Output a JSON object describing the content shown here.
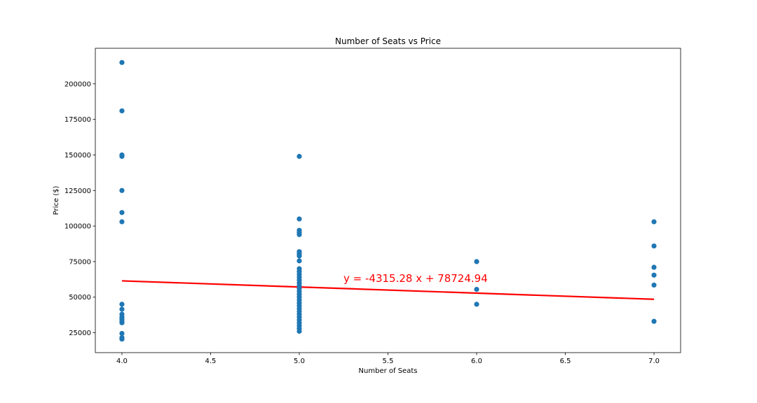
{
  "chart_data": {
    "type": "scatter",
    "title": "Number of Seats vs Price",
    "xlabel": "Number of Seats",
    "ylabel": "Price ($)",
    "xlim": [
      3.85,
      7.15
    ],
    "ylim": [
      11000,
      225000
    ],
    "xticks": [
      4.0,
      4.5,
      5.0,
      5.5,
      6.0,
      6.5,
      7.0
    ],
    "xtick_labels": [
      "4.0",
      "4.5",
      "5.0",
      "5.5",
      "6.0",
      "6.5",
      "7.0"
    ],
    "yticks": [
      25000,
      50000,
      75000,
      100000,
      125000,
      150000,
      175000,
      200000
    ],
    "ytick_labels": [
      "25000",
      "50000",
      "75000",
      "100000",
      "125000",
      "150000",
      "175000",
      "200000"
    ],
    "grid": false,
    "marker_color": "#1f77b4",
    "points": [
      [
        4,
        215000
      ],
      [
        4,
        181000
      ],
      [
        4,
        150000
      ],
      [
        4,
        149000
      ],
      [
        4,
        125000
      ],
      [
        4,
        109500
      ],
      [
        4,
        103000
      ],
      [
        4,
        45000
      ],
      [
        4,
        41500
      ],
      [
        4,
        38000
      ],
      [
        4,
        36000
      ],
      [
        4,
        34500
      ],
      [
        4,
        33000
      ],
      [
        4,
        32000
      ],
      [
        4,
        24500
      ],
      [
        4,
        21500
      ],
      [
        4,
        20500
      ],
      [
        5,
        149000
      ],
      [
        5,
        105000
      ],
      [
        5,
        97000
      ],
      [
        5,
        95500
      ],
      [
        5,
        94000
      ],
      [
        5,
        82000
      ],
      [
        5,
        80500
      ],
      [
        5,
        79000
      ],
      [
        5,
        75500
      ],
      [
        5,
        70000
      ],
      [
        5,
        68000
      ],
      [
        5,
        66000
      ],
      [
        5,
        64000
      ],
      [
        5,
        62000
      ],
      [
        5,
        60000
      ],
      [
        5,
        58000
      ],
      [
        5,
        56000
      ],
      [
        5,
        54000
      ],
      [
        5,
        52000
      ],
      [
        5,
        50000
      ],
      [
        5,
        48000
      ],
      [
        5,
        46000
      ],
      [
        5,
        44000
      ],
      [
        5,
        42000
      ],
      [
        5,
        40000
      ],
      [
        5,
        38000
      ],
      [
        5,
        36000
      ],
      [
        5,
        34000
      ],
      [
        5,
        32000
      ],
      [
        5,
        30000
      ],
      [
        5,
        28000
      ],
      [
        5,
        26000
      ],
      [
        6,
        75000
      ],
      [
        6,
        55500
      ],
      [
        6,
        45000
      ],
      [
        7,
        103000
      ],
      [
        7,
        86000
      ],
      [
        7,
        71000
      ],
      [
        7,
        65500
      ],
      [
        7,
        58500
      ],
      [
        7,
        33000
      ]
    ],
    "regression": {
      "slope": -4315.28,
      "intercept": 78724.94,
      "x_range": [
        4,
        7
      ],
      "color": "#ff0000",
      "equation_label": "y = -4315.28 x + 78724.94"
    }
  }
}
